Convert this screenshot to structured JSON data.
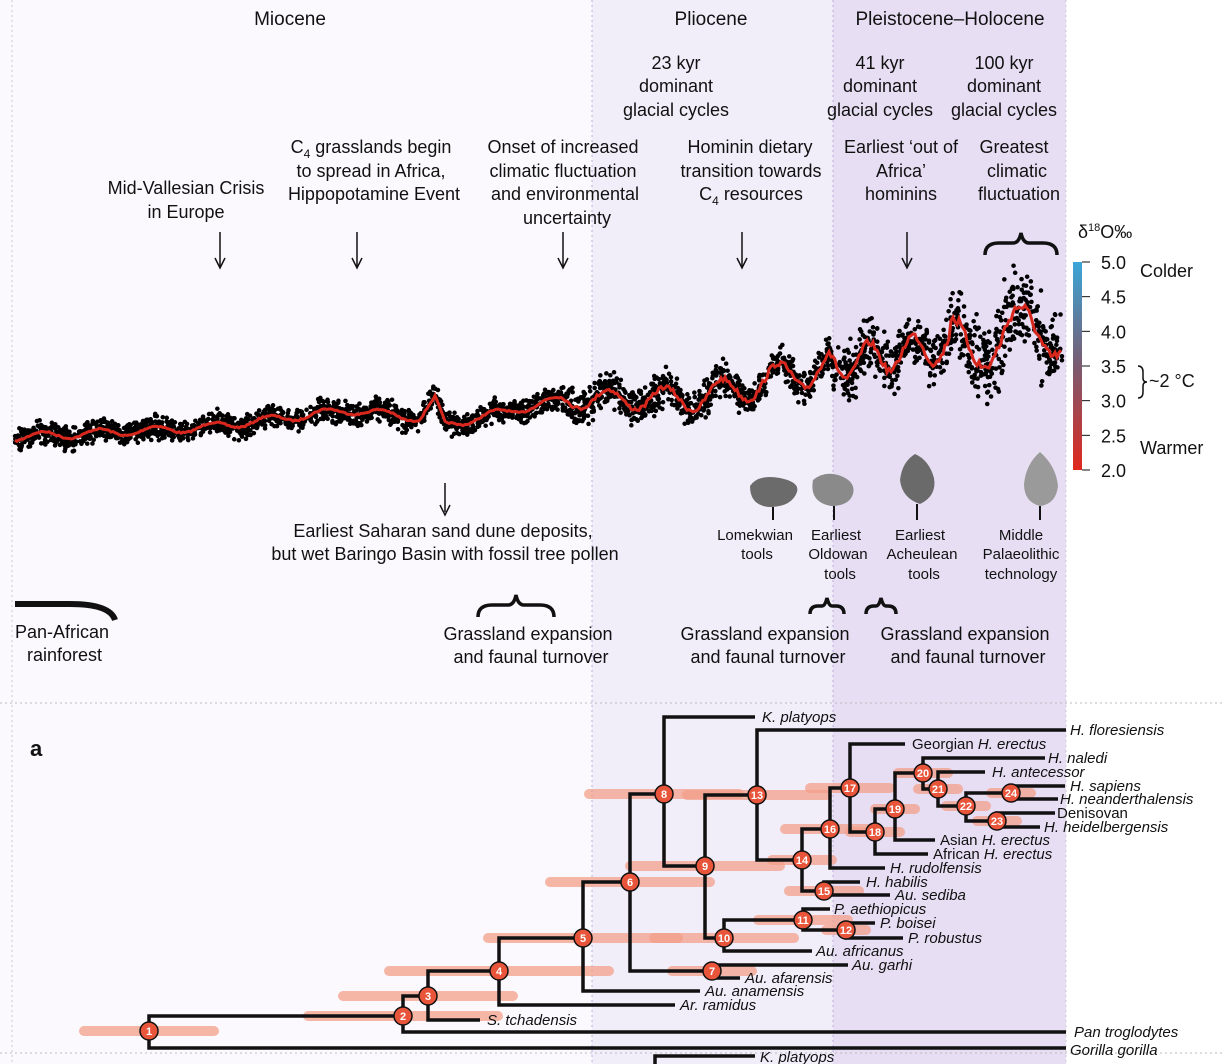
{
  "eras": [
    "Miocene",
    "Pliocene",
    "Pleistocene–Holocene"
  ],
  "cycles": [
    {
      "l1": "23 kyr",
      "l2": "dominant",
      "l3": "glacial cycles"
    },
    {
      "l1": "41 kyr",
      "l2": "dominant",
      "l3": "glacial cycles"
    },
    {
      "l1": "100 kyr",
      "l2": "dominant",
      "l3": "glacial cycles"
    }
  ],
  "events_top": [
    {
      "l1": "Mid-Vallesian Crisis",
      "l2": "in Europe"
    },
    {
      "l1a": "C",
      "l1sub": "4",
      "l1b": " grasslands begin",
      "l2": "to spread in Africa,",
      "l3": "Hippopotamine Event"
    },
    {
      "l1": "Onset of increased",
      "l2": "climatic fluctuation",
      "l3": "and environmental",
      "l4": "uncertainty"
    },
    {
      "l1": "Hominin dietary",
      "l2": "transition towards",
      "l3a": "C",
      "l3sub": "4",
      "l3b": " resources"
    },
    {
      "l1": "Earliest ‘out of",
      "l2": "Africa’",
      "l3": "hominins"
    },
    {
      "l1": "Greatest",
      "l2": "climatic",
      "l3": "fluctuation"
    }
  ],
  "colorbar": {
    "title_a": "δ",
    "title_sup": "18",
    "title_b": "O‰",
    "ticks": [
      "5.0",
      "4.5",
      "4.0",
      "3.5",
      "3.0",
      "2.5",
      "2.0"
    ],
    "colder": "Colder",
    "warmer": "Warmer",
    "delta": "~2 °C",
    "color_cold": "#3aa6d8",
    "color_warm": "#e0281e"
  },
  "events_bottom": {
    "sahara_l1": "Earliest Saharan sand dune deposits,",
    "sahara_l2": "but wet Baringo Basin with fossil tree pollen",
    "rainforest_l1": "Pan-African",
    "rainforest_l2": "rainforest",
    "grass": [
      {
        "l1": "Grassland expansion",
        "l2": "and faunal turnover"
      },
      {
        "l1": "Grassland expansion",
        "l2": "and faunal turnover"
      },
      {
        "l1": "Grassland expansion",
        "l2": "and faunal turnover"
      }
    ]
  },
  "tools": [
    {
      "l1": "Lomekwian",
      "l2": "tools"
    },
    {
      "l1": "Earliest",
      "l2": "Oldowan",
      "l3": "tools"
    },
    {
      "l1": "Earliest",
      "l2": "Acheulean",
      "l3": "tools"
    },
    {
      "l1": "Middle",
      "l2": "Palaeolithic",
      "l3": "technology"
    }
  ],
  "panel_label": "a",
  "species": {
    "k_platyops": "K. platyops",
    "h_floresiensis": "H. floresiensis",
    "georgian": "Georgian ",
    "h_erectus": "H. erectus",
    "h_naledi": "H. naledi",
    "h_antecessor": "H. antecessor",
    "h_sapiens": "H. sapiens",
    "h_neanderthalensis": "H. neanderthalensis",
    "denisovan": "Denisovan",
    "h_heidelbergensis": "H. heidelbergensis",
    "asian": "Asian ",
    "african": "African ",
    "h_rudolfensis": "H. rudolfensis",
    "h_habilis": "H. habilis",
    "au_sediba": "Au. sediba",
    "p_aethiopicus": "P. aethiopicus",
    "p_boisei": "P. boisei",
    "p_robustus": "P. robustus",
    "au_africanus": "Au. africanus",
    "au_garhi": "Au. garhi",
    "au_afarensis": "Au. afarensis",
    "au_anamensis": "Au. anamensis",
    "ar_ramidus": "Ar. ramidus",
    "s_tchadensis": "S. tchadensis",
    "pan": "Pan troglodytes",
    "gorilla": "Gorilla gorilla"
  },
  "nodes": [
    "1",
    "2",
    "3",
    "4",
    "5",
    "6",
    "7",
    "8",
    "9",
    "10",
    "11",
    "12",
    "13",
    "14",
    "15",
    "16",
    "17",
    "18",
    "19",
    "20",
    "21",
    "22",
    "23",
    "24"
  ],
  "colors": {
    "node": "#e8553a",
    "error_bar": "#f4a08a",
    "climate_line": "#d8281e",
    "miocene_bg": "#fbf9fd",
    "pliocene_bg": "#f1eefa",
    "pleistocene_bg": "#e7def4"
  }
}
